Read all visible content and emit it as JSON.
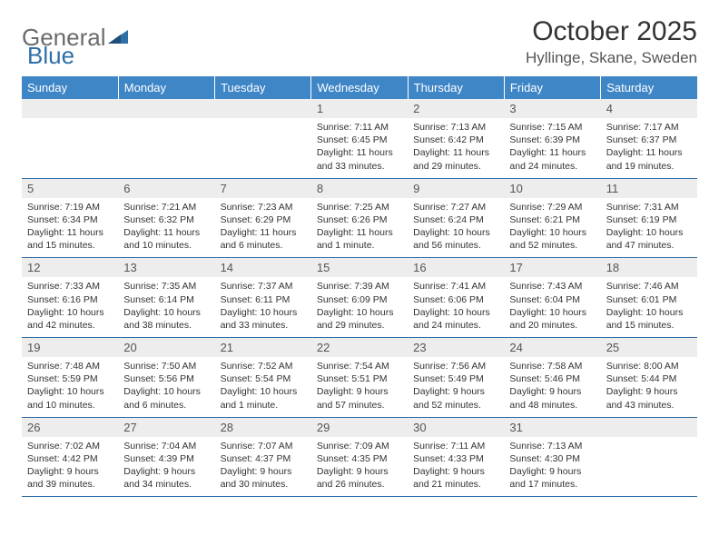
{
  "brand": {
    "general": "General",
    "blue": "Blue"
  },
  "title": "October 2025",
  "location": "Hyllinge, Skane, Sweden",
  "colors": {
    "header_bg": "#3f86c7",
    "row_border": "#2f6fa8",
    "daynum_bg": "#ededed",
    "logo_gray": "#6b6b6b",
    "logo_blue": "#2f6fa8"
  },
  "day_headers": [
    "Sunday",
    "Monday",
    "Tuesday",
    "Wednesday",
    "Thursday",
    "Friday",
    "Saturday"
  ],
  "weeks": [
    [
      {
        "n": "",
        "sr": "",
        "ss": "",
        "dl": ""
      },
      {
        "n": "",
        "sr": "",
        "ss": "",
        "dl": ""
      },
      {
        "n": "",
        "sr": "",
        "ss": "",
        "dl": ""
      },
      {
        "n": "1",
        "sr": "7:11 AM",
        "ss": "6:45 PM",
        "dl": "11 hours and 33 minutes."
      },
      {
        "n": "2",
        "sr": "7:13 AM",
        "ss": "6:42 PM",
        "dl": "11 hours and 29 minutes."
      },
      {
        "n": "3",
        "sr": "7:15 AM",
        "ss": "6:39 PM",
        "dl": "11 hours and 24 minutes."
      },
      {
        "n": "4",
        "sr": "7:17 AM",
        "ss": "6:37 PM",
        "dl": "11 hours and 19 minutes."
      }
    ],
    [
      {
        "n": "5",
        "sr": "7:19 AM",
        "ss": "6:34 PM",
        "dl": "11 hours and 15 minutes."
      },
      {
        "n": "6",
        "sr": "7:21 AM",
        "ss": "6:32 PM",
        "dl": "11 hours and 10 minutes."
      },
      {
        "n": "7",
        "sr": "7:23 AM",
        "ss": "6:29 PM",
        "dl": "11 hours and 6 minutes."
      },
      {
        "n": "8",
        "sr": "7:25 AM",
        "ss": "6:26 PM",
        "dl": "11 hours and 1 minute."
      },
      {
        "n": "9",
        "sr": "7:27 AM",
        "ss": "6:24 PM",
        "dl": "10 hours and 56 minutes."
      },
      {
        "n": "10",
        "sr": "7:29 AM",
        "ss": "6:21 PM",
        "dl": "10 hours and 52 minutes."
      },
      {
        "n": "11",
        "sr": "7:31 AM",
        "ss": "6:19 PM",
        "dl": "10 hours and 47 minutes."
      }
    ],
    [
      {
        "n": "12",
        "sr": "7:33 AM",
        "ss": "6:16 PM",
        "dl": "10 hours and 42 minutes."
      },
      {
        "n": "13",
        "sr": "7:35 AM",
        "ss": "6:14 PM",
        "dl": "10 hours and 38 minutes."
      },
      {
        "n": "14",
        "sr": "7:37 AM",
        "ss": "6:11 PM",
        "dl": "10 hours and 33 minutes."
      },
      {
        "n": "15",
        "sr": "7:39 AM",
        "ss": "6:09 PM",
        "dl": "10 hours and 29 minutes."
      },
      {
        "n": "16",
        "sr": "7:41 AM",
        "ss": "6:06 PM",
        "dl": "10 hours and 24 minutes."
      },
      {
        "n": "17",
        "sr": "7:43 AM",
        "ss": "6:04 PM",
        "dl": "10 hours and 20 minutes."
      },
      {
        "n": "18",
        "sr": "7:46 AM",
        "ss": "6:01 PM",
        "dl": "10 hours and 15 minutes."
      }
    ],
    [
      {
        "n": "19",
        "sr": "7:48 AM",
        "ss": "5:59 PM",
        "dl": "10 hours and 10 minutes."
      },
      {
        "n": "20",
        "sr": "7:50 AM",
        "ss": "5:56 PM",
        "dl": "10 hours and 6 minutes."
      },
      {
        "n": "21",
        "sr": "7:52 AM",
        "ss": "5:54 PM",
        "dl": "10 hours and 1 minute."
      },
      {
        "n": "22",
        "sr": "7:54 AM",
        "ss": "5:51 PM",
        "dl": "9 hours and 57 minutes."
      },
      {
        "n": "23",
        "sr": "7:56 AM",
        "ss": "5:49 PM",
        "dl": "9 hours and 52 minutes."
      },
      {
        "n": "24",
        "sr": "7:58 AM",
        "ss": "5:46 PM",
        "dl": "9 hours and 48 minutes."
      },
      {
        "n": "25",
        "sr": "8:00 AM",
        "ss": "5:44 PM",
        "dl": "9 hours and 43 minutes."
      }
    ],
    [
      {
        "n": "26",
        "sr": "7:02 AM",
        "ss": "4:42 PM",
        "dl": "9 hours and 39 minutes."
      },
      {
        "n": "27",
        "sr": "7:04 AM",
        "ss": "4:39 PM",
        "dl": "9 hours and 34 minutes."
      },
      {
        "n": "28",
        "sr": "7:07 AM",
        "ss": "4:37 PM",
        "dl": "9 hours and 30 minutes."
      },
      {
        "n": "29",
        "sr": "7:09 AM",
        "ss": "4:35 PM",
        "dl": "9 hours and 26 minutes."
      },
      {
        "n": "30",
        "sr": "7:11 AM",
        "ss": "4:33 PM",
        "dl": "9 hours and 21 minutes."
      },
      {
        "n": "31",
        "sr": "7:13 AM",
        "ss": "4:30 PM",
        "dl": "9 hours and 17 minutes."
      },
      {
        "n": "",
        "sr": "",
        "ss": "",
        "dl": ""
      }
    ]
  ],
  "labels": {
    "sunrise": "Sunrise:",
    "sunset": "Sunset:",
    "daylight": "Daylight:"
  }
}
